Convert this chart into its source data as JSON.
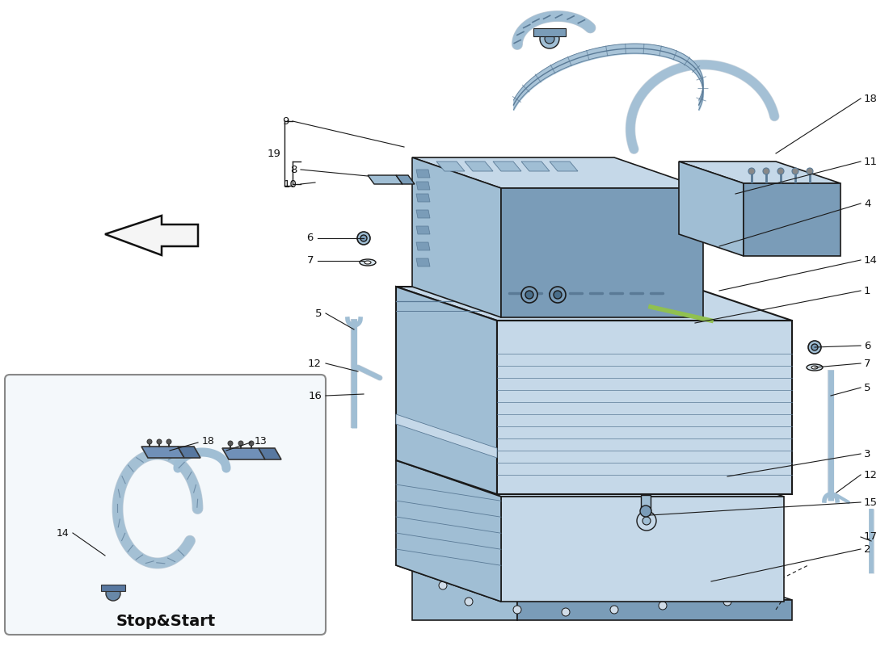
{
  "bg_color": "#ffffff",
  "part_color_light": "#c5d8e8",
  "part_color_mid": "#a0bed4",
  "part_color_dark": "#7a9cb8",
  "part_color_edge": "#5a7a96",
  "part_color_face": "#b0cce0",
  "watermark_color": "#d4c060",
  "line_color": "#1a1a1a",
  "text_color": "#111111",
  "gray_light": "#e8eef4",
  "gray_mid": "#c8d4dc"
}
